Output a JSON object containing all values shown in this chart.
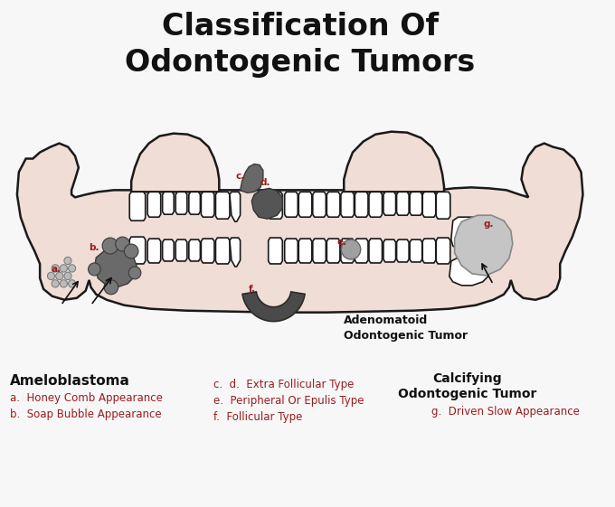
{
  "title_line1": "Classification Of",
  "title_line2": "Odontogenic Tumors",
  "title_fontsize": 24,
  "background_color": "#f7f7f7",
  "jaw_fill": "#f0ddd5",
  "jaw_stroke": "#1a1a1a",
  "tooth_fill": "#ffffff",
  "tooth_stroke": "#1a1a1a",
  "red_label": "#9b1c1c",
  "text_color": "#111111",
  "dark_gray": "#555555",
  "mid_gray": "#888888",
  "silver_gray": "#b8b8b8",
  "section_ameloblastoma": "Ameloblastoma",
  "desc_a": "a.  Honey Comb Appearance",
  "desc_b": "b.  Soap Bubble Appearance",
  "section_adenomatoid": "Adenomatoid\nOdontogenic Tumor",
  "desc_cd": "c.  d.  Extra Follicular Type",
  "desc_e": "e.  Peripheral Or Epulis Type",
  "desc_f": "f.  Follicular Type",
  "section_calcifying": "Calcifying\nOdontogenic Tumor",
  "desc_g": "g.  Driven Slow Appearance"
}
